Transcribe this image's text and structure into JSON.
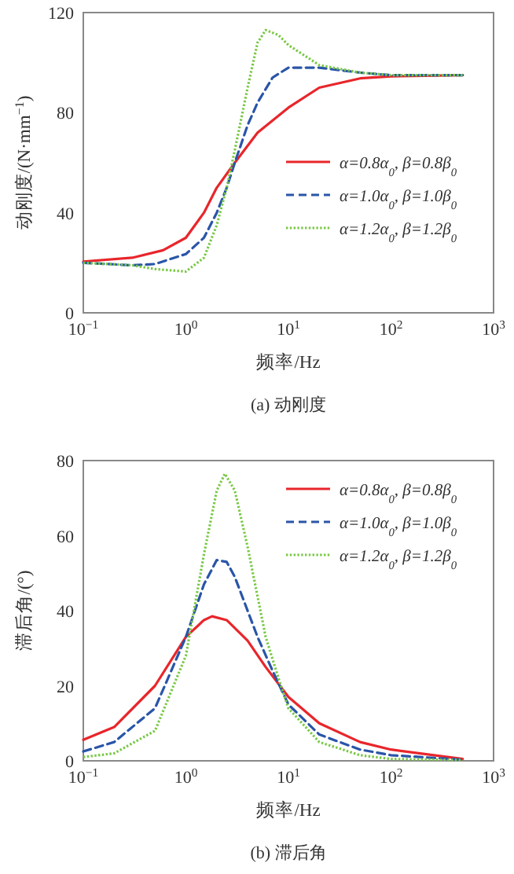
{
  "chart_data": [
    {
      "type": "line",
      "title": "(a) 动刚度",
      "xlabel": "频率/Hz",
      "ylabel": "动刚度/(N·mm$^{−1}$)",
      "log": "x",
      "grid": false,
      "legend": "right",
      "xlim": [
        0.1,
        1000
      ],
      "xticks": [
        {
          "value": 0.1,
          "label": "10$^{−1}$"
        },
        {
          "value": 1,
          "label": "10$^{0}$"
        },
        {
          "value": 10,
          "label": "10$^{1}$"
        },
        {
          "value": 100,
          "label": "10$^{2}$"
        },
        {
          "value": 1000,
          "label": "10$^{3}$"
        }
      ],
      "ylim": [
        0,
        120
      ],
      "yticks": [
        0,
        40,
        80,
        120
      ],
      "series": [
        {
          "name": "α=0.8α$_{0}$, β=0.8β$_{0}$",
          "color": "#e8262b",
          "line_style": "solid",
          "x": [
            0.1,
            0.3,
            0.6,
            1,
            1.5,
            2,
            3,
            5,
            10,
            20,
            50,
            100,
            500
          ],
          "values": [
            20.5,
            22,
            25,
            30,
            40,
            50,
            60,
            72,
            82,
            90,
            93.7,
            94.5,
            95
          ]
        },
        {
          "name": "α=1.0α$_{0}$, β=1.0β$_{0}$",
          "color": "#2a55a8",
          "line_style": "dashed",
          "x": [
            0.1,
            0.3,
            0.5,
            1,
            1.5,
            2,
            2.5,
            3,
            4,
            5,
            7,
            10,
            20,
            50,
            100,
            500
          ],
          "values": [
            20,
            19,
            19.5,
            23.5,
            30,
            40,
            50,
            60,
            75,
            84,
            94,
            98,
            98,
            96,
            95,
            95
          ]
        },
        {
          "name": "α=1.2α$_{0}$, β=1.2β$_{0}$",
          "color": "#77c843",
          "line_style": "dotted",
          "x": [
            0.1,
            0.3,
            0.5,
            1,
            1.5,
            2,
            2.5,
            3,
            4,
            5,
            6,
            8,
            10,
            20,
            50,
            100,
            500
          ],
          "values": [
            20,
            19,
            17.5,
            16.5,
            22,
            35,
            50,
            65,
            90,
            108,
            113,
            111,
            107,
            99,
            96,
            95,
            95
          ]
        }
      ]
    },
    {
      "type": "line",
      "title": "(b) 滞后角",
      "xlabel": "频率/Hz",
      "ylabel": "滞后角/(°)",
      "log": "x",
      "grid": false,
      "legend": "top right",
      "xlim": [
        0.1,
        1000
      ],
      "xticks": [
        {
          "value": 0.1,
          "label": "10$^{−1}$"
        },
        {
          "value": 1,
          "label": "10$^{0}$"
        },
        {
          "value": 10,
          "label": "10$^{1}$"
        },
        {
          "value": 100,
          "label": "10$^{2}$"
        },
        {
          "value": 1000,
          "label": "10$^{3}$"
        }
      ],
      "ylim": [
        0,
        80
      ],
      "yticks": [
        0,
        20,
        40,
        60,
        80
      ],
      "series": [
        {
          "name": "α=0.8α$_{0}$, β=0.8β$_{0}$",
          "color": "#e8262b",
          "line_style": "solid",
          "x": [
            0.1,
            0.2,
            0.5,
            1,
            1.5,
            1.8,
            2.5,
            4,
            6,
            10,
            20,
            50,
            100,
            500
          ],
          "values": [
            5.6,
            9,
            20,
            33,
            37.5,
            38.5,
            37.5,
            32,
            25,
            17,
            10,
            5,
            3,
            0.5
          ]
        },
        {
          "name": "α=1.0α$_{0}$, β=1.0β$_{0}$",
          "color": "#2a55a8",
          "line_style": "dashed",
          "x": [
            0.1,
            0.2,
            0.5,
            1,
            1.5,
            2,
            2.5,
            3,
            5,
            7,
            10,
            20,
            50,
            100,
            500
          ],
          "values": [
            2.5,
            5,
            14,
            33,
            47,
            53.5,
            53,
            49,
            33,
            24,
            15,
            7,
            3,
            1.5,
            0.3
          ]
        },
        {
          "name": "α=1.2α$_{0}$, β=1.2β$_{0}$",
          "color": "#77c843",
          "line_style": "dotted",
          "x": [
            0.1,
            0.2,
            0.5,
            1,
            1.5,
            2,
            2.4,
            3,
            4,
            6,
            8,
            10,
            20,
            50,
            100,
            500
          ],
          "values": [
            1,
            2,
            8,
            28,
            55,
            72,
            76.5,
            72,
            57,
            33,
            22,
            14,
            5,
            1.5,
            0.5,
            0.2
          ]
        }
      ]
    }
  ]
}
